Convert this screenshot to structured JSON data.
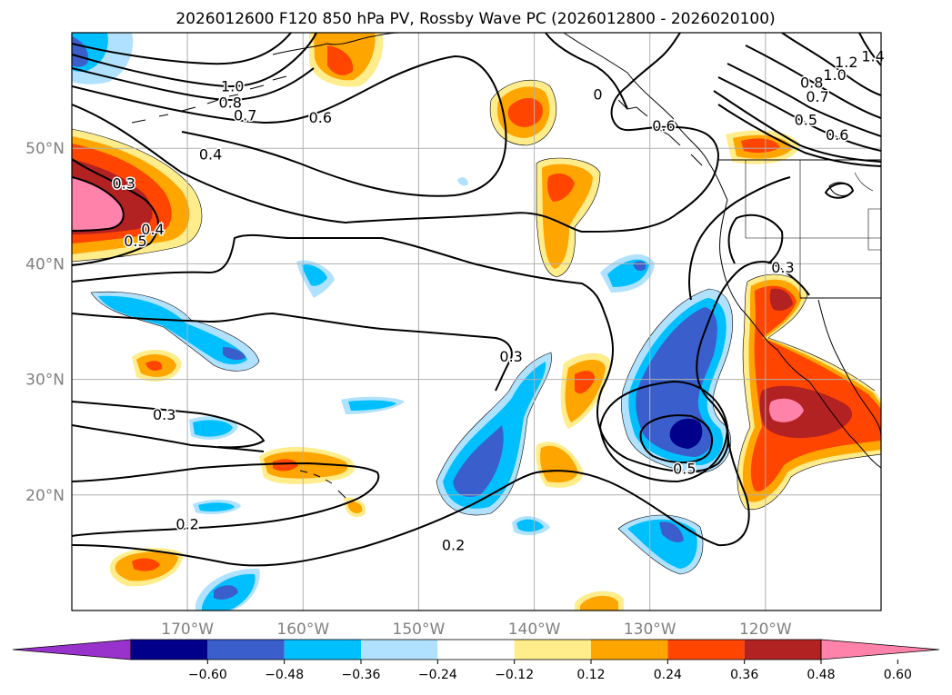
{
  "title": "2026012600 F120 850 hPa PV, Rossby Wave PC (2026012800 - 2026020100)",
  "map": {
    "lon_range": [
      -180,
      -110
    ],
    "lat_range": [
      10,
      60
    ],
    "lon_ticks": [
      {
        "value": -170,
        "label": "170°W"
      },
      {
        "value": -160,
        "label": "160°W"
      },
      {
        "value": -150,
        "label": "150°W"
      },
      {
        "value": -140,
        "label": "140°W"
      },
      {
        "value": -130,
        "label": "130°W"
      },
      {
        "value": -120,
        "label": "120°W"
      }
    ],
    "lat_ticks": [
      {
        "value": 20,
        "label": "20°N"
      },
      {
        "value": 30,
        "label": "30°N"
      },
      {
        "value": 40,
        "label": "40°N"
      },
      {
        "value": 50,
        "label": "50°N"
      }
    ],
    "grid": true,
    "grid_color": "#b0b0b0",
    "coastline_color": "#000000",
    "contour_color": "#000000",
    "contour_labels": [
      {
        "text": "1.0",
        "lon": -166.1,
        "lat": 55.4
      },
      {
        "text": "0.8",
        "lon": -166.3,
        "lat": 54.0
      },
      {
        "text": "0.7",
        "lon": -165.0,
        "lat": 52.9
      },
      {
        "text": "0.6",
        "lon": -158.5,
        "lat": 52.7
      },
      {
        "text": "0.4",
        "lon": -168.0,
        "lat": 49.5
      },
      {
        "text": "0.3",
        "lon": -175.5,
        "lat": 47.0
      },
      {
        "text": "0.4",
        "lon": -173.0,
        "lat": 43.0
      },
      {
        "text": "0.5",
        "lon": -174.5,
        "lat": 42.0
      },
      {
        "text": "0.3",
        "lon": -172.0,
        "lat": 27.0
      },
      {
        "text": "0.2",
        "lon": -170.0,
        "lat": 17.5
      },
      {
        "text": "0.2",
        "lon": -147.0,
        "lat": 15.7
      },
      {
        "text": "0.3",
        "lon": -142.0,
        "lat": 32.0
      },
      {
        "text": "0.5",
        "lon": -127.0,
        "lat": 22.3
      },
      {
        "text": "0.3",
        "lon": -118.5,
        "lat": 39.7
      },
      {
        "text": "0",
        "lon": -134.5,
        "lat": 54.7
      },
      {
        "text": "0.6",
        "lon": -128.8,
        "lat": 52.0
      },
      {
        "text": "1.2",
        "lon": -113.0,
        "lat": 57.5
      },
      {
        "text": "1.0",
        "lon": -114.0,
        "lat": 56.4
      },
      {
        "text": "0.8",
        "lon": -116.0,
        "lat": 55.7
      },
      {
        "text": "0.7",
        "lon": -115.5,
        "lat": 54.5
      },
      {
        "text": "0.5",
        "lon": -116.5,
        "lat": 52.5
      },
      {
        "text": "0.6",
        "lon": -113.8,
        "lat": 51.2
      },
      {
        "text": "1.4",
        "lon": -110.7,
        "lat": 58.0
      }
    ]
  },
  "colorbar": {
    "colors": [
      "#9932CC",
      "#00008B",
      "#3A5FCD",
      "#00BFFF",
      "#B0E2FF",
      "#FFFFFF",
      "#FFEC8B",
      "#FFA500",
      "#FF4500",
      "#B22222",
      "#FF82AB"
    ],
    "tick_values": [
      -0.6,
      -0.48,
      -0.36,
      -0.24,
      -0.12,
      0.12,
      0.24,
      0.36,
      0.48,
      0.6
    ],
    "tick_labels": [
      "−0.60",
      "−0.48",
      "−0.36",
      "−0.24",
      "−0.12",
      "0.12",
      "0.24",
      "0.36",
      "0.48",
      "0.60"
    ],
    "extend": "both"
  }
}
